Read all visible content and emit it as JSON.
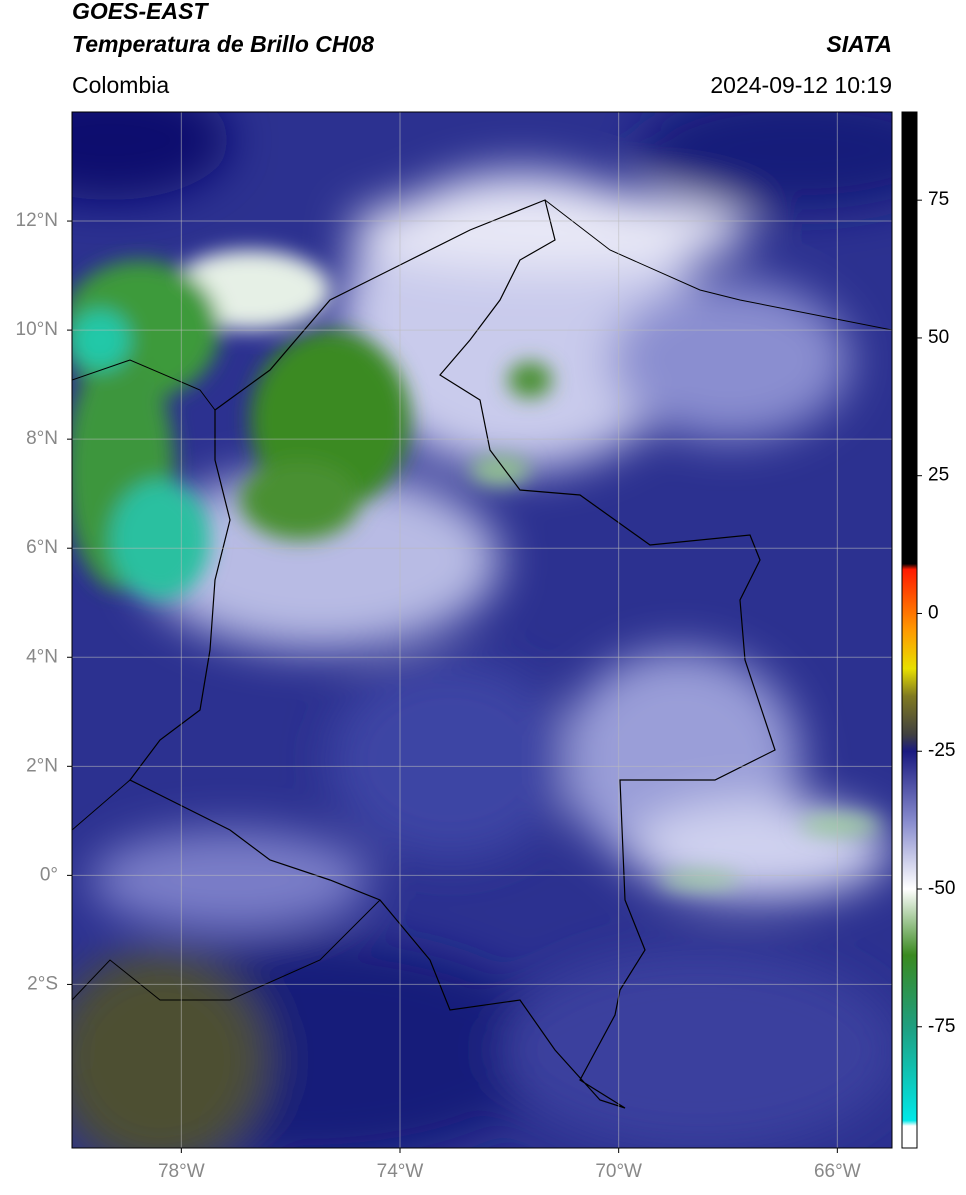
{
  "chart_data": {
    "type": "map",
    "title": "GOES-EAST",
    "subtitle": "Temperatura de Brillo CH08",
    "region": "Colombia",
    "source": "SIATA",
    "datetime": "2024-09-12 10:19",
    "xlim": [
      -80,
      -65
    ],
    "ylim": [
      -5,
      14
    ],
    "xticks": [
      {
        "value": -78,
        "label": "78°W"
      },
      {
        "value": -74,
        "label": "74°W"
      },
      {
        "value": -70,
        "label": "70°W"
      },
      {
        "value": -66,
        "label": "66°W"
      }
    ],
    "yticks": [
      {
        "value": -2,
        "label": "2°S"
      },
      {
        "value": 0,
        "label": "0°"
      },
      {
        "value": 2,
        "label": "2°N"
      },
      {
        "value": 4,
        "label": "4°N"
      },
      {
        "value": 6,
        "label": "6°N"
      },
      {
        "value": 8,
        "label": "8°N"
      },
      {
        "value": 10,
        "label": "10°N"
      },
      {
        "value": 12,
        "label": "12°N"
      }
    ],
    "grid": true,
    "colorbar": {
      "lim": [
        -97,
        91
      ],
      "ticks": [
        -75,
        -50,
        -25,
        0,
        25,
        50,
        75
      ],
      "stops": [
        {
          "value": -97,
          "color": "#ffffff"
        },
        {
          "value": -93,
          "color": "#ffffff"
        },
        {
          "value": -92,
          "color": "#00e8e8"
        },
        {
          "value": -75,
          "color": "#1f9f80"
        },
        {
          "value": -62,
          "color": "#3a8a20"
        },
        {
          "value": -50,
          "color": "#ffffff"
        },
        {
          "value": -38,
          "color": "#8a8ecf"
        },
        {
          "value": -25,
          "color": "#1a1a80"
        },
        {
          "value": -22,
          "color": "#404040"
        },
        {
          "value": -15,
          "color": "#807a20"
        },
        {
          "value": -10,
          "color": "#e8e000"
        },
        {
          "value": -3,
          "color": "#ff9900"
        },
        {
          "value": 8,
          "color": "#ff1a00"
        },
        {
          "value": 9,
          "color": "#000000"
        },
        {
          "value": 91,
          "color": "#000000"
        }
      ]
    }
  }
}
